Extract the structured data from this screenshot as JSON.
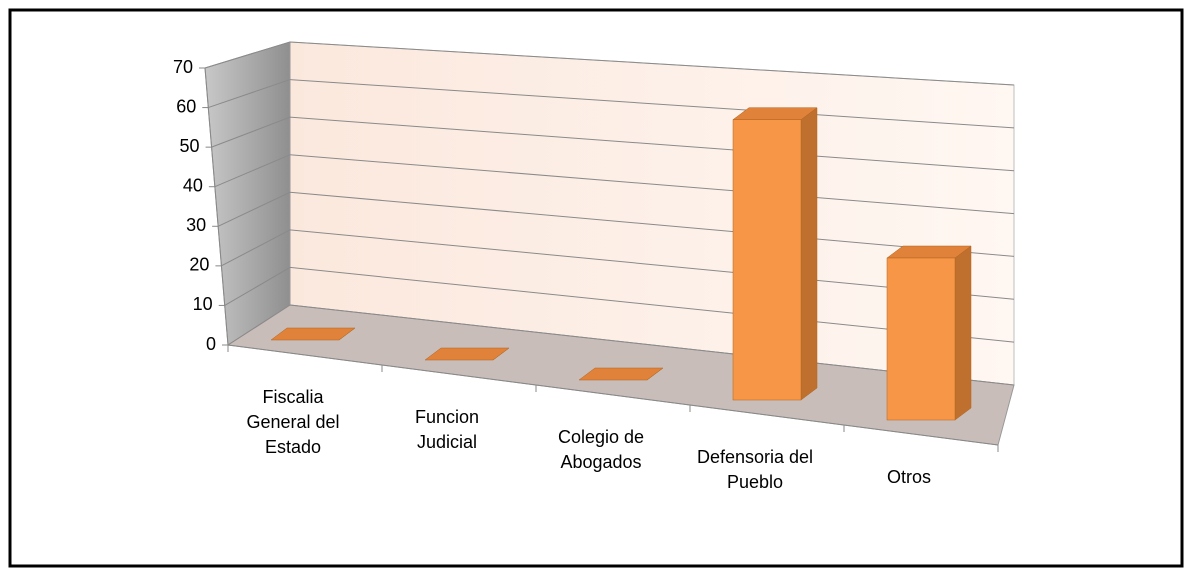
{
  "chart_data": {
    "type": "bar3d",
    "categories": [
      "Fiscalia General del Estado",
      "Funcion Judicial",
      "Colegio de Abogados",
      "Defensoria del Pueblo",
      "Otros"
    ],
    "values": [
      0,
      0,
      0,
      64,
      36
    ],
    "color": "#f79646",
    "ylim": [
      0,
      70
    ],
    "yticks": [
      0,
      10,
      20,
      30,
      40,
      50,
      60,
      70
    ],
    "grid": true
  }
}
